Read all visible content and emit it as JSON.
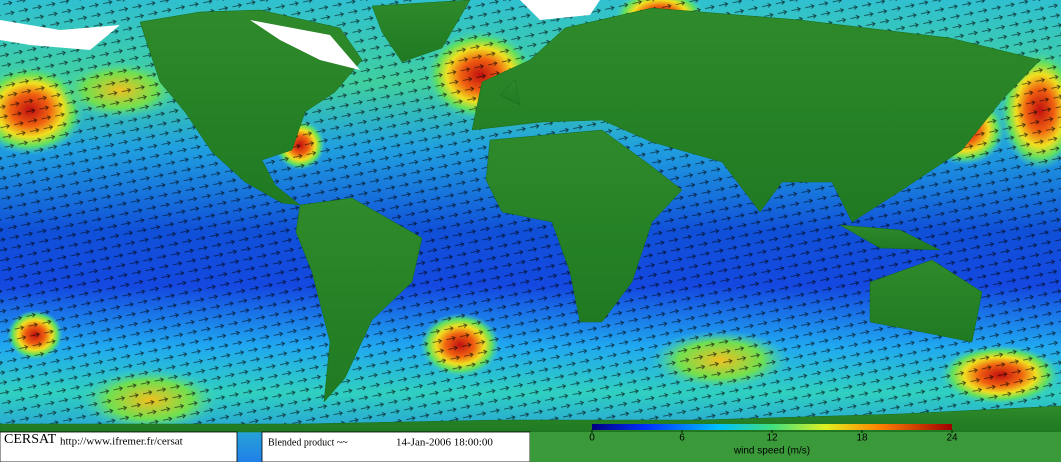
{
  "footer": {
    "logo": "CERSAT",
    "url": "http://www.ifremer.fr/cersat",
    "product": "Blended product ~~",
    "date": "14-Jan-2006 18:00:00"
  },
  "colorbar": {
    "label": "wind speed (m/s)",
    "lim": [
      0,
      24
    ],
    "ticks": [
      0,
      6,
      12,
      18,
      24
    ]
  }
}
